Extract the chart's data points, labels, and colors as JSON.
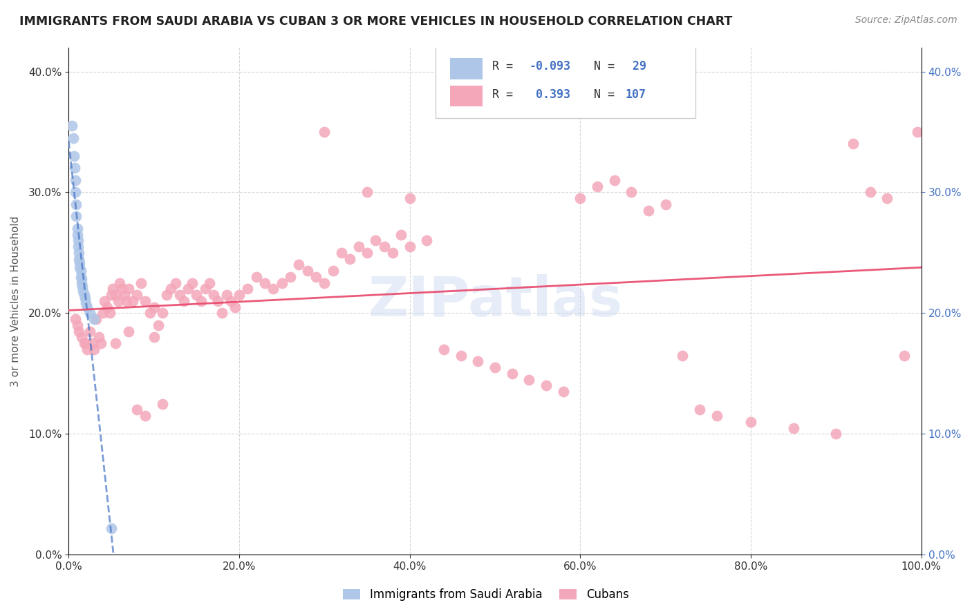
{
  "title": "IMMIGRANTS FROM SAUDI ARABIA VS CUBAN 3 OR MORE VEHICLES IN HOUSEHOLD CORRELATION CHART",
  "source": "Source: ZipAtlas.com",
  "ylabel_label": "3 or more Vehicles in Household",
  "saudi_scatter_x": [
    0.004,
    0.005,
    0.006,
    0.007,
    0.008,
    0.008,
    0.009,
    0.009,
    0.01,
    0.01,
    0.011,
    0.011,
    0.012,
    0.012,
    0.013,
    0.013,
    0.014,
    0.014,
    0.015,
    0.015,
    0.016,
    0.017,
    0.018,
    0.019,
    0.02,
    0.022,
    0.025,
    0.03,
    0.05
  ],
  "saudi_scatter_y": [
    0.355,
    0.345,
    0.33,
    0.32,
    0.31,
    0.3,
    0.29,
    0.28,
    0.27,
    0.265,
    0.26,
    0.255,
    0.25,
    0.245,
    0.242,
    0.238,
    0.235,
    0.23,
    0.228,
    0.225,
    0.222,
    0.218,
    0.215,
    0.212,
    0.208,
    0.205,
    0.2,
    0.195,
    0.022
  ],
  "cuban_scatter_x": [
    0.008,
    0.01,
    0.012,
    0.015,
    0.018,
    0.02,
    0.022,
    0.025,
    0.028,
    0.03,
    0.032,
    0.035,
    0.038,
    0.04,
    0.042,
    0.045,
    0.048,
    0.05,
    0.052,
    0.055,
    0.058,
    0.06,
    0.062,
    0.065,
    0.068,
    0.07,
    0.075,
    0.08,
    0.085,
    0.09,
    0.095,
    0.1,
    0.105,
    0.11,
    0.115,
    0.12,
    0.125,
    0.13,
    0.135,
    0.14,
    0.145,
    0.15,
    0.155,
    0.16,
    0.165,
    0.17,
    0.175,
    0.18,
    0.185,
    0.19,
    0.195,
    0.2,
    0.21,
    0.22,
    0.23,
    0.24,
    0.25,
    0.26,
    0.27,
    0.28,
    0.29,
    0.3,
    0.31,
    0.32,
    0.33,
    0.34,
    0.35,
    0.36,
    0.37,
    0.38,
    0.39,
    0.4,
    0.42,
    0.44,
    0.46,
    0.48,
    0.5,
    0.52,
    0.54,
    0.56,
    0.58,
    0.6,
    0.62,
    0.64,
    0.66,
    0.68,
    0.7,
    0.72,
    0.74,
    0.76,
    0.8,
    0.85,
    0.9,
    0.92,
    0.94,
    0.96,
    0.98,
    0.995,
    0.055,
    0.07,
    0.08,
    0.09,
    0.1,
    0.11,
    0.3,
    0.35,
    0.4
  ],
  "cuban_scatter_y": [
    0.195,
    0.19,
    0.185,
    0.18,
    0.175,
    0.175,
    0.17,
    0.185,
    0.175,
    0.17,
    0.195,
    0.18,
    0.175,
    0.2,
    0.21,
    0.205,
    0.2,
    0.215,
    0.22,
    0.215,
    0.21,
    0.225,
    0.22,
    0.215,
    0.21,
    0.22,
    0.21,
    0.215,
    0.225,
    0.21,
    0.2,
    0.205,
    0.19,
    0.2,
    0.215,
    0.22,
    0.225,
    0.215,
    0.21,
    0.22,
    0.225,
    0.215,
    0.21,
    0.22,
    0.225,
    0.215,
    0.21,
    0.2,
    0.215,
    0.21,
    0.205,
    0.215,
    0.22,
    0.23,
    0.225,
    0.22,
    0.225,
    0.23,
    0.24,
    0.235,
    0.23,
    0.225,
    0.235,
    0.25,
    0.245,
    0.255,
    0.25,
    0.26,
    0.255,
    0.25,
    0.265,
    0.255,
    0.26,
    0.17,
    0.165,
    0.16,
    0.155,
    0.15,
    0.145,
    0.14,
    0.135,
    0.295,
    0.305,
    0.31,
    0.3,
    0.285,
    0.29,
    0.165,
    0.12,
    0.115,
    0.11,
    0.105,
    0.1,
    0.34,
    0.3,
    0.295,
    0.165,
    0.35,
    0.175,
    0.185,
    0.12,
    0.115,
    0.18,
    0.125,
    0.35,
    0.3,
    0.295
  ],
  "saudi_line_color": "#4472c4",
  "cuban_line_color": "#e8476a",
  "saudi_dot_color": "#aec6e8",
  "cuban_dot_color": "#f4a7b9",
  "background_color": "#ffffff",
  "watermark": "ZIPatlas",
  "xlim": [
    0.0,
    1.0
  ],
  "ylim": [
    0.0,
    0.42
  ],
  "saudi_R": "-0.093",
  "saudi_N": "29",
  "cuban_R": "0.393",
  "cuban_N": "107"
}
